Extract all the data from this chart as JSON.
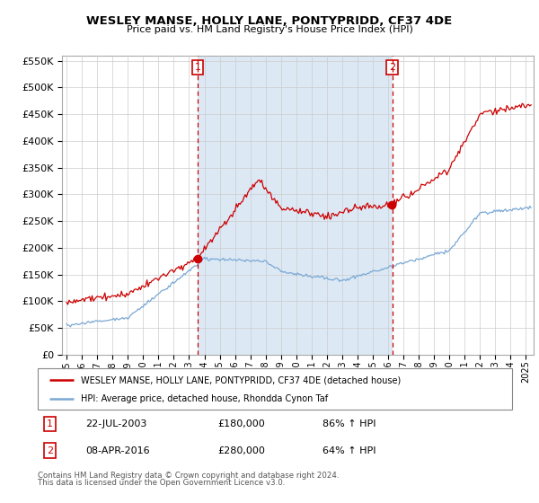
{
  "title": "WESLEY MANSE, HOLLY LANE, PONTYPRIDD, CF37 4DE",
  "subtitle": "Price paid vs. HM Land Registry's House Price Index (HPI)",
  "legend_line1": "WESLEY MANSE, HOLLY LANE, PONTYPRIDD, CF37 4DE (detached house)",
  "legend_line2": "HPI: Average price, detached house, Rhondda Cynon Taf",
  "annotation1_label": "1",
  "annotation1_date": "22-JUL-2003",
  "annotation1_price": "£180,000",
  "annotation1_hpi": "86% ↑ HPI",
  "annotation2_label": "2",
  "annotation2_date": "08-APR-2016",
  "annotation2_price": "£280,000",
  "annotation2_hpi": "64% ↑ HPI",
  "footer_line1": "Contains HM Land Registry data © Crown copyright and database right 2024.",
  "footer_line2": "This data is licensed under the Open Government Licence v3.0.",
  "sale1_date_num": 2003.55,
  "sale1_price": 180000,
  "sale2_date_num": 2016.27,
  "sale2_price": 280000,
  "red_line_color": "#cc0000",
  "blue_line_color": "#7aa8d4",
  "shade_color": "#dce9f5",
  "annotation_vline_color": "#cc0000",
  "annotation_box_color": "#cc0000",
  "ylim": [
    0,
    560000
  ],
  "yticks": [
    0,
    50000,
    100000,
    150000,
    200000,
    250000,
    300000,
    350000,
    400000,
    450000,
    500000,
    550000
  ],
  "xlabel_years": [
    1995,
    1996,
    1997,
    1998,
    1999,
    2000,
    2001,
    2002,
    2003,
    2004,
    2005,
    2006,
    2007,
    2008,
    2009,
    2010,
    2011,
    2012,
    2013,
    2014,
    2015,
    2016,
    2017,
    2018,
    2019,
    2020,
    2021,
    2022,
    2023,
    2024,
    2025
  ],
  "xlim_start": 1994.7,
  "xlim_end": 2025.5
}
